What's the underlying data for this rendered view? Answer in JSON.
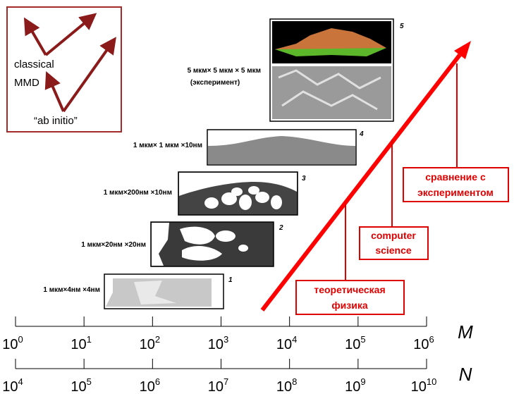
{
  "inset": {
    "labels": [
      "classical",
      "MMD",
      "“ab initio”"
    ]
  },
  "panels": [
    {
      "number": "1",
      "label": [
        "1 мкм×4нм ×4нм"
      ]
    },
    {
      "number": "2",
      "label": [
        "1 мкм×20нм ×20нм"
      ]
    },
    {
      "number": "3",
      "label": [
        "1 мкм×200нм ×10нм"
      ]
    },
    {
      "number": "4",
      "label": [
        "1 мкм× 1 мкм ×10нм"
      ]
    },
    {
      "number": "5",
      "label": [
        "5 мкм× 5 мкм × 5 мкм",
        "(эксперимент)"
      ]
    }
  ],
  "boxes": [
    {
      "lines": [
        "теоретическая",
        "физика"
      ]
    },
    {
      "lines": [
        "computer",
        "science"
      ]
    },
    {
      "lines": [
        "сравнение с",
        "экспериментом"
      ]
    }
  ],
  "axes": [
    {
      "name": "M",
      "ticks": [
        {
          "base": "10",
          "exponent": "0"
        },
        {
          "base": "10",
          "exponent": "1"
        },
        {
          "base": "10",
          "exponent": "2"
        },
        {
          "base": "10",
          "exponent": "3"
        },
        {
          "base": "10",
          "exponent": "4"
        },
        {
          "base": "10",
          "exponent": "5"
        },
        {
          "base": "10",
          "exponent": "6"
        }
      ]
    },
    {
      "name": "N",
      "ticks": [
        {
          "base": "10",
          "exponent": "4"
        },
        {
          "base": "10",
          "exponent": "5"
        },
        {
          "base": "10",
          "exponent": "6"
        },
        {
          "base": "10",
          "exponent": "7"
        },
        {
          "base": "10",
          "exponent": "8"
        },
        {
          "base": "10",
          "exponent": "9"
        },
        {
          "base": "10",
          "exponent": "10"
        }
      ]
    }
  ]
}
